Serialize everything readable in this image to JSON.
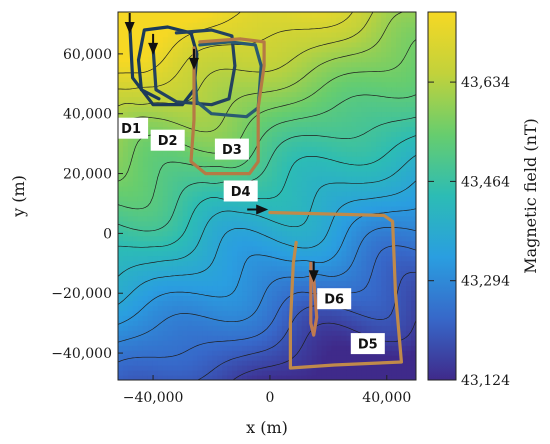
{
  "chart_data": {
    "type": "heatmap",
    "title": "",
    "xlabel": "x (m)",
    "ylabel": "y (m)",
    "xlim": [
      -52000,
      50000
    ],
    "ylim": [
      -49000,
      74000
    ],
    "xticks": [
      -40000,
      0,
      40000
    ],
    "xtick_labels": [
      "−40,000",
      "0",
      "40,000"
    ],
    "yticks": [
      60000,
      40000,
      20000,
      0,
      -20000,
      -40000
    ],
    "ytick_labels": [
      "60,000",
      "40,000",
      "20,000",
      "0",
      "−20,000",
      "−40,000"
    ],
    "colorbar": {
      "label": "Magnetic field (nT)",
      "ticks": [
        43634,
        43464,
        43294,
        43124
      ],
      "tick_labels": [
        "43,634",
        "43,464",
        "43,294",
        "43,124"
      ],
      "range": [
        43124,
        43754
      ],
      "colors": [
        "#3f2a8a",
        "#3768c9",
        "#2a9ee0",
        "#2cbcb5",
        "#67cd6e",
        "#c2d23b",
        "#f6d824"
      ]
    },
    "field_model": {
      "base": 43370,
      "slope_y": 0.0047,
      "slope_x": -0.0018
    },
    "contour_interval_nT": 40,
    "trajectories": [
      {
        "name": "D1",
        "color": "#1b3a5a",
        "points": [
          [
            -48000,
            70000
          ],
          [
            -47000,
            52000
          ],
          [
            -40000,
            43000
          ],
          [
            -30000,
            43000
          ],
          [
            -26000,
            48000
          ],
          [
            -25000,
            60000
          ],
          [
            -27000,
            67000
          ],
          [
            -35000,
            69000
          ],
          [
            -43000,
            68000
          ],
          [
            -45000,
            58000
          ],
          [
            -44000,
            48000
          ],
          [
            -38000,
            45000
          ]
        ]
      },
      {
        "name": "D2",
        "color": "#23425f",
        "points": [
          [
            -40000,
            62000
          ],
          [
            -39000,
            48000
          ],
          [
            -32000,
            44000
          ],
          [
            -20000,
            43000
          ],
          [
            -14000,
            45000
          ],
          [
            -12000,
            56000
          ],
          [
            -13000,
            66000
          ],
          [
            -20000,
            68000
          ],
          [
            -32000,
            67000
          ]
        ]
      },
      {
        "name": "D3",
        "color": "#2a5a72",
        "points": [
          [
            -26000,
            56000
          ],
          [
            -25000,
            44000
          ],
          [
            -20000,
            40000
          ],
          [
            -8000,
            39000
          ],
          [
            -4000,
            42000
          ],
          [
            -3000,
            56000
          ],
          [
            -5000,
            63000
          ],
          [
            -14000,
            64000
          ],
          [
            -24000,
            63000
          ]
        ]
      },
      {
        "name": "D4",
        "color": "#b57a45",
        "points": [
          [
            -26000,
            62000
          ],
          [
            -26000,
            38000
          ],
          [
            -27000,
            24000
          ],
          [
            -22000,
            20000
          ],
          [
            -7000,
            20000
          ],
          [
            -4000,
            24000
          ],
          [
            -4000,
            42000
          ],
          [
            -2000,
            56000
          ],
          [
            -2000,
            64000
          ],
          [
            -10000,
            65000
          ],
          [
            -24000,
            64000
          ]
        ]
      },
      {
        "name": "D5",
        "color": "#c08a4a",
        "points": [
          [
            0,
            7000
          ],
          [
            39000,
            6000
          ],
          [
            42000,
            4000
          ],
          [
            43000,
            -20000
          ],
          [
            45000,
            -43000
          ],
          [
            22000,
            -44000
          ],
          [
            7000,
            -45000
          ],
          [
            7000,
            -30000
          ],
          [
            8000,
            -10000
          ],
          [
            9000,
            -3000
          ]
        ]
      },
      {
        "name": "D6",
        "color": "#c07a50",
        "points": [
          [
            14000,
            -10000
          ],
          [
            14000,
            -20000
          ],
          [
            14000,
            -30000
          ],
          [
            15000,
            -34000
          ],
          [
            16000,
            -28000
          ],
          [
            15000,
            -15000
          ]
        ]
      }
    ],
    "arrows": [
      [
        -48000,
        69000,
        90
      ],
      [
        -40000,
        62000,
        90
      ],
      [
        -26000,
        57000,
        90
      ],
      [
        -3000,
        8000,
        0
      ],
      [
        15000,
        -14000,
        90
      ]
    ],
    "labels": [
      {
        "text": "D1",
        "x": -47500,
        "y": 35000
      },
      {
        "text": "D2",
        "x": -35000,
        "y": 31000
      },
      {
        "text": "D3",
        "x": -13000,
        "y": 28000
      },
      {
        "text": "D4",
        "x": -10000,
        "y": 14000
      },
      {
        "text": "D6",
        "x": 22000,
        "y": -22000
      },
      {
        "text": "D5",
        "x": 33500,
        "y": -37000
      }
    ]
  }
}
